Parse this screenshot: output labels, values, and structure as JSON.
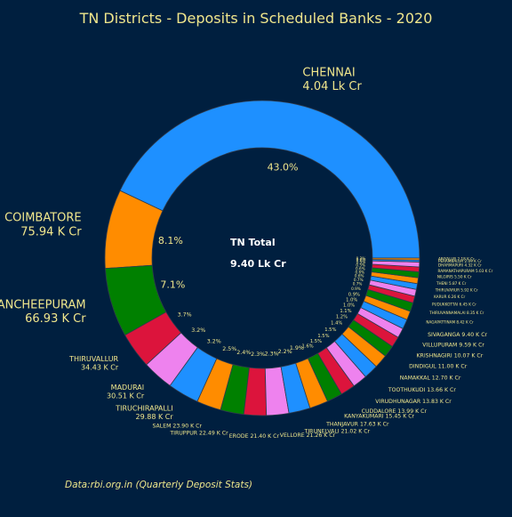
{
  "chart_data": {
    "type": "pie",
    "style": "donut",
    "title": "TN Districts - Deposits in Scheduled Banks - 2020",
    "center_label_1": "TN Total",
    "center_label_2": "9.40 Lk Cr",
    "source_note": "Data:rbi.org.in (Quarterly Deposit Stats)",
    "background_color": "#001f3f",
    "text_color": "#f0e68c",
    "palette": [
      "#1e90ff",
      "#ff8c00",
      "#008000",
      "#dc143c",
      "#ee82ee"
    ],
    "slices": [
      {
        "label": "CHENNAI",
        "value_label": "4.04 Lk Cr",
        "pct": "43.0%",
        "share": 43.0
      },
      {
        "label": "COIMBATORE",
        "value_label": "75.94 K Cr",
        "pct": "8.1%",
        "share": 8.1
      },
      {
        "label": "KANCHEEPURAM",
        "value_label": "66.93 K Cr",
        "pct": "7.1%",
        "share": 7.1
      },
      {
        "label": "THIRUVALLUR",
        "value_label": "34.43 K Cr",
        "pct": "3.7%",
        "share": 3.7
      },
      {
        "label": "MADURAI",
        "value_label": "30.51 K Cr",
        "pct": "3.2%",
        "share": 3.2
      },
      {
        "label": "TIRUCHIRAPALLI",
        "value_label": "29.88 K Cr",
        "pct": "3.2%",
        "share": 3.2
      },
      {
        "label": "SALEM",
        "value_label": "23.90 K Cr",
        "pct": "2.5%",
        "share": 2.5
      },
      {
        "label": "TIRUPPUR",
        "value_label": "22.49 K Cr",
        "pct": "2.4%",
        "share": 2.4
      },
      {
        "label": "ERODE",
        "value_label": "21.40 K Cr",
        "pct": "2.3%",
        "share": 2.3
      },
      {
        "label": "VELLORE",
        "value_label": "21.26 K Cr",
        "pct": "2.3%",
        "share": 2.3
      },
      {
        "label": "TIRUNELVALI",
        "value_label": "21.02 K Cr",
        "pct": "2.2%",
        "share": 2.2
      },
      {
        "label": "THANJAVUR",
        "value_label": "17.63 K Cr",
        "pct": "1.9%",
        "share": 1.9
      },
      {
        "label": "KANYAKUMARI",
        "value_label": "15.45 K Cr",
        "pct": "1.6%",
        "share": 1.6
      },
      {
        "label": "CUDDALORE",
        "value_label": "13.99 K Cr",
        "pct": "1.5%",
        "share": 1.5
      },
      {
        "label": "VIRUDHUNAGAR",
        "value_label": "13.83 K Cr",
        "pct": "1.5%",
        "share": 1.5
      },
      {
        "label": "TOOTHUKUDI",
        "value_label": "13.66 K Cr",
        "pct": "1.5%",
        "share": 1.5
      },
      {
        "label": "NAMAKKAL",
        "value_label": "12.70 K Cr",
        "pct": "1.4%",
        "share": 1.4
      },
      {
        "label": "DINDIGUL",
        "value_label": "11.00 K Cr",
        "pct": "1.2%",
        "share": 1.2
      },
      {
        "label": "KRISHNAGIRI",
        "value_label": "10.07 K Cr",
        "pct": "1.1%",
        "share": 1.1
      },
      {
        "label": "VILLUPURAM",
        "value_label": "9.59 K Cr",
        "pct": "1.0%",
        "share": 1.0
      },
      {
        "label": "SIVAGANGA",
        "value_label": "9.40 K Cr",
        "pct": "1.0%",
        "share": 1.0
      },
      {
        "label": "NAGAPATTINAM",
        "value_label": "8.42 K Cr",
        "pct": "0.9%",
        "share": 0.9
      },
      {
        "label": "THIRUVANNAMALAI",
        "value_label": "8.35 K Cr",
        "pct": "0.9%",
        "share": 0.9
      },
      {
        "label": "PUDUKKOTTAI",
        "value_label": "6.45 K Cr",
        "pct": "0.7%",
        "share": 0.7
      },
      {
        "label": "KARUR",
        "value_label": "6.26 K Cr",
        "pct": "0.7%",
        "share": 0.7
      },
      {
        "label": "THIRUVARUR",
        "value_label": "5.92 K Cr",
        "pct": "0.6%",
        "share": 0.6
      },
      {
        "label": "THENI",
        "value_label": "5.87 K Cr",
        "pct": "0.6%",
        "share": 0.6
      },
      {
        "label": "NILGIRIS",
        "value_label": "5.50 K Cr",
        "pct": "0.6%",
        "share": 0.6
      },
      {
        "label": "RAMANATHAPURAM",
        "value_label": "5.03 K Cr",
        "pct": "0.5%",
        "share": 0.5
      },
      {
        "label": "DHARMAPURI",
        "value_label": "4.32 K Cr",
        "pct": "0.5%",
        "share": 0.5
      },
      {
        "label": "PERAMBALUR",
        "value_label": "2.09 K Cr",
        "pct": "0.2%",
        "share": 0.2
      },
      {
        "label": "ARIYALUR",
        "value_label": "2.18 K Cr",
        "pct": "0.2%",
        "share": 0.2
      }
    ]
  }
}
